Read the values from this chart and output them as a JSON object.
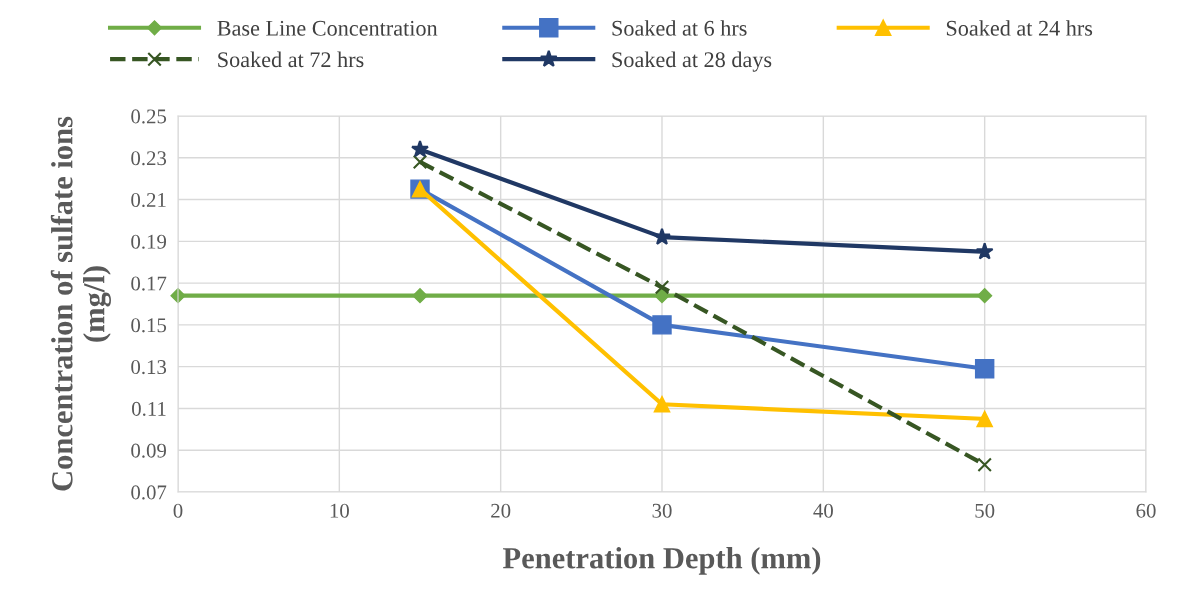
{
  "chart_data": {
    "type": "line",
    "xlabel": "Penetration Depth (mm)",
    "ylabel": "Concentration of sulfate ions\n(mg/l)",
    "xlim": [
      0,
      60
    ],
    "xticks": [
      0,
      10,
      20,
      30,
      40,
      50,
      60
    ],
    "ylim": [
      0.07,
      0.25
    ],
    "yticks": [
      0.07,
      0.09,
      0.11,
      0.13,
      0.15,
      0.17,
      0.19,
      0.21,
      0.23,
      0.25
    ],
    "grid": true,
    "legend": "top",
    "series": [
      {
        "name": "Base Line Concentration",
        "color": "#70ad47",
        "x": [
          0,
          15,
          30,
          50
        ],
        "values": [
          0.164,
          0.164,
          0.164,
          0.164
        ],
        "marker": "diamond",
        "line_style": "solid"
      },
      {
        "name": "Soaked at 6 hrs",
        "color": "#4472c4",
        "x": [
          15,
          30,
          50
        ],
        "values": [
          0.215,
          0.15,
          0.129
        ],
        "marker": "square",
        "line_style": "solid"
      },
      {
        "name": "Soaked at 24 hrs",
        "color": "#ffc000",
        "x": [
          15,
          30,
          50
        ],
        "values": [
          0.215,
          0.112,
          0.105
        ],
        "marker": "triangle",
        "line_style": "solid"
      },
      {
        "name": "Soaked at 72 hrs",
        "color": "#375623",
        "x": [
          15,
          30,
          50
        ],
        "values": [
          0.228,
          0.168,
          0.083
        ],
        "marker": "cross",
        "line_style": "dashed"
      },
      {
        "name": "Soaked at 28 days",
        "color": "#203864",
        "x": [
          15,
          30,
          50
        ],
        "values": [
          0.234,
          0.192,
          0.185
        ],
        "marker": "star",
        "line_style": "solid"
      }
    ]
  }
}
